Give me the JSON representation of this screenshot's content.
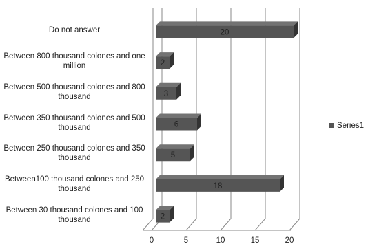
{
  "chart_data": {
    "type": "bar",
    "orientation": "horizontal",
    "three_d": true,
    "categories": [
      "Do not answer",
      "Between 800 thousand colones and one million",
      "Between 500 thousand colones and 800 thousand",
      "Between 350 thousand colones and 500 thousand",
      "Between 250 thousand colones and 350 thousand",
      "Between100 thousand colones and 250 thousand",
      "Between 30 thousand colones and 100 thousand"
    ],
    "series": [
      {
        "name": "Series1",
        "color": "#555555",
        "values": [
          20,
          2,
          3,
          6,
          5,
          18,
          2
        ]
      }
    ],
    "xlim": [
      0,
      20
    ],
    "xticks": [
      0,
      5,
      10,
      15,
      20
    ],
    "grid": true,
    "legend": "right"
  }
}
